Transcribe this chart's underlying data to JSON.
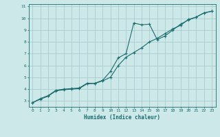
{
  "xlabel": "Humidex (Indice chaleur)",
  "bg_color": "#cce8e8",
  "grid_color": "#aacccc",
  "line_color": "#1a6b6b",
  "xlim": [
    -0.5,
    23.5
  ],
  "ylim": [
    2.5,
    11.2
  ],
  "xticks": [
    0,
    1,
    2,
    3,
    4,
    5,
    6,
    7,
    8,
    9,
    10,
    11,
    12,
    13,
    14,
    15,
    16,
    17,
    18,
    19,
    20,
    21,
    22,
    23
  ],
  "yticks": [
    3,
    4,
    5,
    6,
    7,
    8,
    9,
    10,
    11
  ],
  "line1_x": [
    0,
    1,
    2,
    3,
    4,
    5,
    6,
    7,
    8,
    9,
    10,
    11,
    12,
    13,
    14,
    15,
    16,
    17,
    18,
    19,
    20,
    21,
    22,
    23
  ],
  "line1_y": [
    2.85,
    3.2,
    3.45,
    3.9,
    4.0,
    4.05,
    4.1,
    4.5,
    4.5,
    4.75,
    5.5,
    6.65,
    7.0,
    9.6,
    9.45,
    9.5,
    8.2,
    8.5,
    9.0,
    9.5,
    9.85,
    10.1,
    10.45,
    10.6
  ],
  "line2_x": [
    0,
    1,
    2,
    3,
    4,
    5,
    6,
    7,
    8,
    9,
    10,
    11,
    12,
    13,
    14,
    15,
    16,
    17,
    18,
    19,
    20,
    21,
    22,
    23
  ],
  "line2_y": [
    2.85,
    3.15,
    3.4,
    3.85,
    3.95,
    4.0,
    4.05,
    4.45,
    4.48,
    4.7,
    5.0,
    6.0,
    6.7,
    7.1,
    7.5,
    8.0,
    8.3,
    8.7,
    9.1,
    9.4,
    9.9,
    10.1,
    10.45,
    10.6
  ]
}
